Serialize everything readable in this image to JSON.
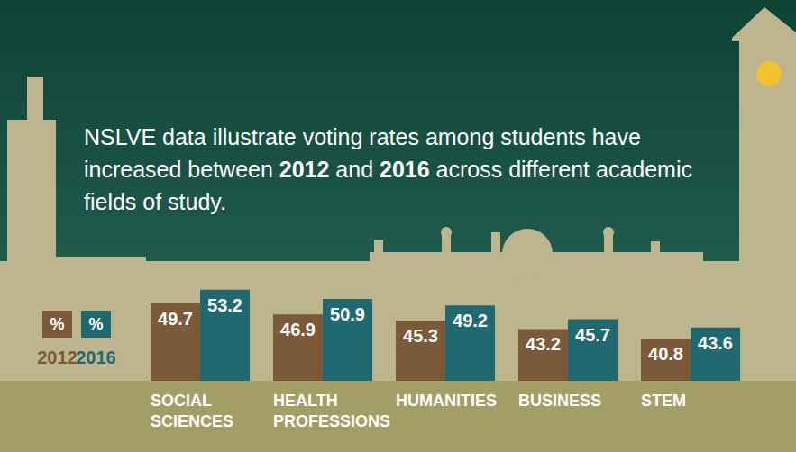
{
  "chart_data": {
    "type": "bar",
    "title": "NSLVE data illustrate voting rates among students have increased between 2012 and 2016 across different academic fields of study.",
    "legend_label": "%",
    "categories": [
      "SOCIAL SCIENCES",
      "HEALTH PROFESSIONS",
      "HUMANITIES",
      "BUSINESS",
      "STEM"
    ],
    "series": [
      {
        "name": "2012",
        "color": "#7a5a38",
        "values": [
          49.7,
          46.9,
          45.3,
          43.2,
          40.8
        ]
      },
      {
        "name": "2016",
        "color": "#1e6a70",
        "values": [
          53.2,
          50.9,
          49.2,
          45.7,
          43.6
        ]
      }
    ],
    "ylim": [
      30,
      55
    ],
    "tick_labels": "x",
    "grid": false,
    "data_labels": true,
    "legend": "left"
  }
}
